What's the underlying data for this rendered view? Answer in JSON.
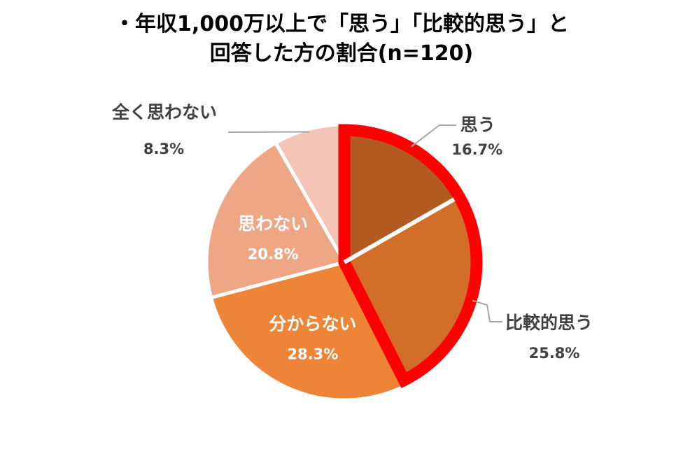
{
  "title": {
    "line1": "・年収1,000万以上で「思う」「比較的思う」と",
    "line2": "回答した方の割合(n=120)"
  },
  "chart_data": {
    "type": "pie",
    "n": 120,
    "start_angle_deg": 0,
    "direction": "clockwise",
    "unit": "%",
    "slices": [
      {
        "label": "思う",
        "value": 16.7,
        "color": "#B35A22",
        "highlighted": true,
        "label_inside": false
      },
      {
        "label": "比較的思う",
        "value": 25.8,
        "color": "#D26E2A",
        "highlighted": true,
        "label_inside": false
      },
      {
        "label": "分からない",
        "value": 28.3,
        "color": "#EE8437",
        "highlighted": false,
        "label_inside": true
      },
      {
        "label": "思わない",
        "value": 20.8,
        "color": "#EFA685",
        "highlighted": false,
        "label_inside": true
      },
      {
        "label": "全く思わない",
        "value": 8.3,
        "color": "#F4C5B6",
        "highlighted": false,
        "label_inside": false
      }
    ],
    "highlight_color": "#FF0000",
    "leader_color": "#A6A6A6",
    "label_color_outside": "#404040",
    "label_color_inside": "#FFFFFF"
  }
}
